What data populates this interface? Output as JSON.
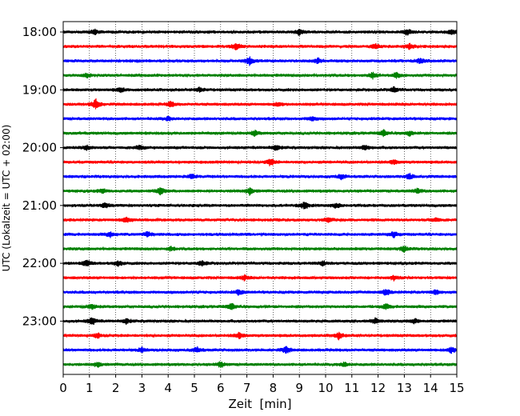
{
  "chart_data": {
    "type": "line",
    "title": "",
    "xlabel": "Zeit  [min]",
    "ylabel": "UTC (Lokalzeit = UTC + 02:00)",
    "xlim": [
      0,
      15
    ],
    "x_ticks": [
      0,
      1,
      2,
      3,
      4,
      5,
      6,
      7,
      8,
      9,
      10,
      11,
      12,
      13,
      14,
      15
    ],
    "x_tick_labels": [
      "0",
      "1",
      "2",
      "3",
      "4",
      "5",
      "6",
      "7",
      "8",
      "9",
      "10",
      "11",
      "12",
      "13",
      "14",
      "15"
    ],
    "y_tick_labels": [
      "18:00",
      "19:00",
      "20:00",
      "21:00",
      "22:00",
      "23:00"
    ],
    "grid": "vertical dotted at each minute",
    "legend": "none",
    "trace_colors": [
      "#000000",
      "#ff0000",
      "#0000ff",
      "#008000"
    ],
    "series": [
      {
        "start": "18:00",
        "color": "#000000",
        "events": [
          [
            1.2,
            1.0
          ],
          [
            9.0,
            1.1
          ],
          [
            13.1,
            1.2
          ],
          [
            14.8,
            1.0
          ]
        ]
      },
      {
        "start": "18:15",
        "color": "#ff0000",
        "events": [
          [
            6.6,
            1.2
          ],
          [
            11.9,
            0.9
          ],
          [
            13.2,
            1.0
          ]
        ]
      },
      {
        "start": "18:30",
        "color": "#0000ff",
        "events": [
          [
            7.1,
            1.6
          ],
          [
            9.7,
            0.9
          ],
          [
            13.6,
            1.0
          ]
        ]
      },
      {
        "start": "18:45",
        "color": "#008000",
        "events": [
          [
            0.9,
            0.8
          ],
          [
            11.8,
            1.2
          ],
          [
            12.7,
            1.0
          ]
        ]
      },
      {
        "start": "19:00",
        "color": "#000000",
        "events": [
          [
            2.2,
            0.8
          ],
          [
            5.2,
            0.9
          ],
          [
            12.6,
            1.0
          ]
        ]
      },
      {
        "start": "19:15",
        "color": "#ff0000",
        "events": [
          [
            1.25,
            2.0
          ],
          [
            4.1,
            1.0
          ],
          [
            8.2,
            0.8
          ]
        ]
      },
      {
        "start": "19:30",
        "color": "#0000ff",
        "events": [
          [
            4.0,
            0.7
          ],
          [
            9.5,
            0.8
          ]
        ]
      },
      {
        "start": "19:45",
        "color": "#008000",
        "events": [
          [
            7.3,
            0.9
          ],
          [
            12.2,
            1.2
          ],
          [
            13.2,
            0.8
          ]
        ]
      },
      {
        "start": "20:00",
        "color": "#000000",
        "events": [
          [
            0.9,
            0.9
          ],
          [
            2.9,
            0.8
          ],
          [
            8.1,
            1.1
          ],
          [
            11.5,
            0.9
          ]
        ]
      },
      {
        "start": "20:15",
        "color": "#ff0000",
        "events": [
          [
            7.9,
            1.3
          ],
          [
            12.6,
            0.8
          ]
        ]
      },
      {
        "start": "20:30",
        "color": "#0000ff",
        "events": [
          [
            4.9,
            0.8
          ],
          [
            10.6,
            0.9
          ],
          [
            13.2,
            1.1
          ]
        ]
      },
      {
        "start": "20:45",
        "color": "#008000",
        "events": [
          [
            1.5,
            0.8
          ],
          [
            3.7,
            1.4
          ],
          [
            7.1,
            1.3
          ],
          [
            13.5,
            0.9
          ]
        ]
      },
      {
        "start": "21:00",
        "color": "#000000",
        "events": [
          [
            1.6,
            1.0
          ],
          [
            9.2,
            1.4
          ],
          [
            10.4,
            0.9
          ]
        ]
      },
      {
        "start": "21:15",
        "color": "#ff0000",
        "events": [
          [
            2.4,
            1.2
          ],
          [
            10.1,
            0.9
          ],
          [
            14.2,
            0.8
          ]
        ]
      },
      {
        "start": "21:30",
        "color": "#0000ff",
        "events": [
          [
            1.8,
            0.9
          ],
          [
            3.2,
            1.0
          ],
          [
            12.6,
            1.1
          ]
        ]
      },
      {
        "start": "21:45",
        "color": "#008000",
        "events": [
          [
            4.1,
            0.8
          ],
          [
            13.0,
            1.0
          ]
        ]
      },
      {
        "start": "22:00",
        "color": "#000000",
        "events": [
          [
            0.9,
            1.2
          ],
          [
            2.1,
            0.9
          ],
          [
            5.3,
            1.0
          ],
          [
            9.9,
            0.8
          ]
        ]
      },
      {
        "start": "22:15",
        "color": "#ff0000",
        "events": [
          [
            6.9,
            0.9
          ],
          [
            12.6,
            0.8
          ]
        ]
      },
      {
        "start": "22:30",
        "color": "#0000ff",
        "events": [
          [
            6.7,
            1.0
          ],
          [
            12.3,
            1.2
          ],
          [
            14.2,
            0.9
          ]
        ]
      },
      {
        "start": "22:45",
        "color": "#008000",
        "events": [
          [
            1.1,
            0.9
          ],
          [
            6.4,
            1.3
          ],
          [
            12.3,
            0.9
          ]
        ]
      },
      {
        "start": "23:00",
        "color": "#000000",
        "events": [
          [
            1.1,
            1.5
          ],
          [
            2.4,
            1.0
          ],
          [
            11.9,
            1.1
          ],
          [
            13.4,
            0.9
          ]
        ]
      },
      {
        "start": "23:15",
        "color": "#ff0000",
        "events": [
          [
            1.3,
            1.0
          ],
          [
            6.7,
            1.1
          ],
          [
            10.5,
            1.2
          ]
        ]
      },
      {
        "start": "23:30",
        "color": "#0000ff",
        "events": [
          [
            3.0,
            0.8
          ],
          [
            5.1,
            1.0
          ],
          [
            8.5,
            1.3
          ],
          [
            14.8,
            1.2
          ]
        ]
      },
      {
        "start": "23:45",
        "color": "#008000",
        "events": [
          [
            1.3,
            0.9
          ],
          [
            6.0,
            1.0
          ],
          [
            10.7,
            0.8
          ]
        ]
      }
    ]
  }
}
